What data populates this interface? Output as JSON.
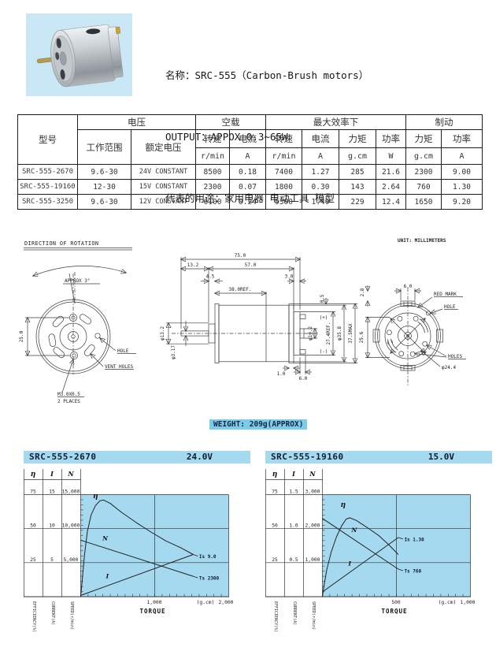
{
  "colors": {
    "plot_fill": "#a5d9ef",
    "bar_fill": "#a5d9ef",
    "weight_bg": "#7ccbe9",
    "photo_bg": "#cae7f5",
    "line": "#222222"
  },
  "product": {
    "name_line": "名称：SRC-555（Carbon-Brush motors）",
    "output_line": "OUTPUT：APPOX 0.3~65W",
    "usage_line": "代表的用途：家用电器 电动工具 模型"
  },
  "spec_table": {
    "model_header": "型号",
    "groups": {
      "voltage": "电压",
      "no_load": "空载",
      "max_eff": "最大效率下",
      "stall": "制动"
    },
    "range_header": "工作范围",
    "rated_header": "额定电压",
    "sub": [
      "转速",
      "电流",
      "转速",
      "电流",
      "力矩",
      "功率",
      "力矩",
      "功率"
    ],
    "units": [
      "r/min",
      "A",
      "r/min",
      "A",
      "g.cm",
      "W",
      "g.cm",
      "A"
    ],
    "rows": [
      [
        "SRC-555-2670",
        "9.6-30",
        "24V CONSTANT",
        "8500",
        "0.18",
        "7400",
        "1.27",
        "285",
        "21.6",
        "2300",
        "9.00"
      ],
      [
        "SRC-555-19160",
        "12-30",
        "15V CONSTANT",
        "2300",
        "0.07",
        "1800",
        "0.30",
        "143",
        "2.64",
        "760",
        "1.30"
      ],
      [
        "SRC-555-3250",
        "9.6-30",
        "12V CONSTANT",
        "6100",
        "0.24",
        "5300",
        "1.49",
        "229",
        "12.4",
        "1650",
        "9.20"
      ]
    ]
  },
  "drawing": {
    "unit_note": "UNIT: MILLIMETERS",
    "front": {
      "title": "DIRECTION OF ROTATION",
      "approx": "APPROX 3°",
      "dim_25": "25.0",
      "hole": "HOLE",
      "vent_holes": "VENT HOLES",
      "screw": "M3.0X0.5",
      "places": "2 PLACES"
    },
    "side": {
      "d75": "75.0",
      "d13_2": "13.2",
      "d57": "57.0",
      "d4_5": "4.5",
      "d3_0": "3.0",
      "d38": "38.0REF.",
      "d0_5": "0.5",
      "dia13_2": "φ13.2",
      "dia3_17": "φ3.17",
      "dia10_2": "φ10.2",
      "d27_4": "27.4REF.",
      "dia35_8": "φ35.8",
      "d37_5": "37.5MAX",
      "plus": "(+)",
      "minus": "(-)",
      "d1_0": "1.0",
      "d6_0": "6.0"
    },
    "rear": {
      "d6_0": "6.0",
      "d2_8": "2.8",
      "d25_6": "25.6",
      "red_mark": "RED MARK",
      "hole": "HOLE",
      "holes": "HOLES",
      "dia24_4": "φ24.4"
    }
  },
  "weight_note": "WEIGHT: 209g(APPROX)",
  "chart_data": [
    {
      "type": "line",
      "model": "SRC-555-2670",
      "voltage": "24.0V",
      "xlabel": "TORQUE",
      "x_unit": "(g.cm)",
      "x_max": 2000,
      "x_mid_label": "1,000",
      "x_end_label": "2,000",
      "col_headers": [
        "η",
        "I",
        "N"
      ],
      "axis_labels": [
        "EFFICIENCY(%)",
        "CURRENT(A)",
        "SPEED(r/min)"
      ],
      "eta": {
        "max": 75,
        "ticks": [
          "75",
          "50",
          "25"
        ]
      },
      "i": {
        "max": 15,
        "ticks": [
          "15",
          "10",
          "5"
        ]
      },
      "n": {
        "max": 15000,
        "ticks": [
          "15,000",
          "10,000",
          "5,000"
        ]
      },
      "series": [
        {
          "key": "eta",
          "label": "η",
          "label_at": [
            200,
            72.5
          ],
          "points": [
            [
              0,
              0
            ],
            [
              20,
              12
            ],
            [
              50,
              30
            ],
            [
              90,
              48
            ],
            [
              140,
              60
            ],
            [
              200,
              67
            ],
            [
              260,
              70.5
            ],
            [
              310,
              71
            ],
            [
              400,
              68.5
            ],
            [
              550,
              62
            ],
            [
              750,
              54.5
            ],
            [
              950,
              47.5
            ],
            [
              1150,
              41
            ],
            [
              1350,
              36
            ],
            [
              1520,
              31
            ]
          ]
        },
        {
          "key": "n",
          "label": "N",
          "label_at": [
            330,
            8300
          ],
          "points": [
            [
              0,
              8300
            ],
            [
              1520,
              3000
            ]
          ]
        },
        {
          "key": "i",
          "label": "I",
          "label_at": [
            360,
            2.7
          ],
          "points": [
            [
              0,
              0.18
            ],
            [
              1520,
              6.2
            ]
          ]
        }
      ],
      "annotations": [
        {
          "text": "Is 9.0",
          "anchor": "i"
        },
        {
          "text": "Ts 2300",
          "anchor": "n"
        }
      ]
    },
    {
      "type": "line",
      "model": "SRC-555-19160",
      "voltage": "15.0V",
      "xlabel": "TORQUE",
      "x_unit": "(g.cm)",
      "x_max": 1000,
      "x_mid_label": "500",
      "x_end_label": "1,000",
      "col_headers": [
        "η",
        "I",
        "N"
      ],
      "axis_labels": [
        "EFFICIENCY(%)",
        "CURRENT(A)",
        "SPEED(r/min)"
      ],
      "eta": {
        "max": 75,
        "ticks": [
          "75",
          "50",
          "25"
        ]
      },
      "i": {
        "max": 1.5,
        "ticks": [
          "1.5",
          "1.0",
          "0.5"
        ]
      },
      "n": {
        "max": 3000,
        "ticks": [
          "3,000",
          "2,000",
          "1,000"
        ]
      },
      "series": [
        {
          "key": "eta",
          "label": "η",
          "label_at": [
            140,
            66
          ],
          "points": [
            [
              0,
              0
            ],
            [
              12,
              9
            ],
            [
              30,
              20
            ],
            [
              60,
              33
            ],
            [
              95,
              44
            ],
            [
              130,
              52
            ],
            [
              160,
              57
            ],
            [
              185,
              58
            ],
            [
              230,
              56
            ],
            [
              300,
              51
            ],
            [
              380,
              45
            ],
            [
              450,
              38
            ],
            [
              513,
              31
            ]
          ]
        },
        {
          "key": "n",
          "label": "N",
          "label_at": [
            215,
            1900
          ],
          "points": [
            [
              0,
              2300
            ],
            [
              513,
              810
            ]
          ]
        },
        {
          "key": "i",
          "label": "I",
          "label_at": [
            185,
            0.46
          ],
          "points": [
            [
              0,
              0.07
            ],
            [
              513,
              0.87
            ]
          ]
        }
      ],
      "annotations": [
        {
          "text": "Is 1.30",
          "anchor": "i"
        },
        {
          "text": "Ts 760",
          "anchor": "n"
        }
      ]
    }
  ]
}
